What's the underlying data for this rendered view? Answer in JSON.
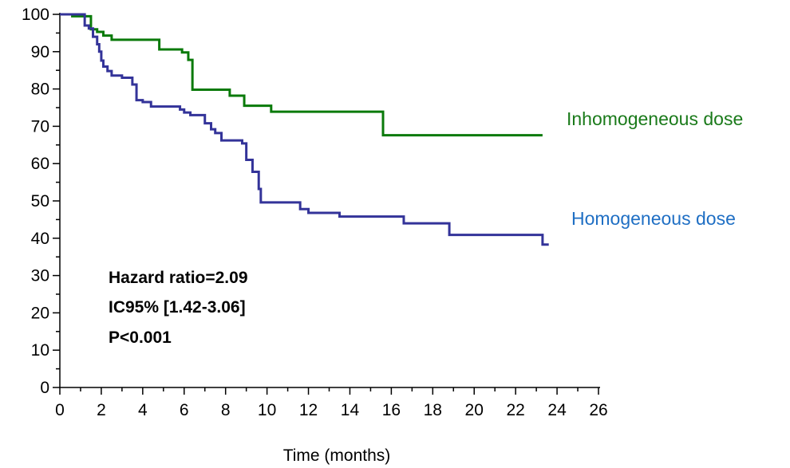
{
  "chart_data": {
    "type": "line",
    "step": true,
    "xlabel": "Time (months)",
    "ylabel": "",
    "xlim": [
      0,
      26
    ],
    "ylim": [
      0,
      100
    ],
    "x_ticks": [
      "0",
      "2",
      "4",
      "6",
      "8",
      "10",
      "12",
      "14",
      "16",
      "18",
      "20",
      "22",
      "24",
      "26"
    ],
    "y_ticks": [
      "0",
      "10",
      "20",
      "30",
      "40",
      "50",
      "60",
      "70",
      "80",
      "90",
      "100"
    ],
    "grid": false,
    "series": [
      {
        "name": "Inhomogeneous dose",
        "color": "#0a7a0a",
        "label_color": "#1a7a1a",
        "x": [
          0,
          0.5,
          0.6,
          1.3,
          1.5,
          1.8,
          2.1,
          2.5,
          4.1,
          4.8,
          5.9,
          6.2,
          6.4,
          8.2,
          8.9,
          10.2,
          15.6,
          23.3
        ],
        "y": [
          100,
          100,
          99.5,
          99.5,
          96,
          95.3,
          94.3,
          93.2,
          93.2,
          90.6,
          89.8,
          87.8,
          79.8,
          78.2,
          75.5,
          73.9,
          67.6,
          67.6
        ]
      },
      {
        "name": "Homogeneous dose",
        "color": "#333399",
        "label_color": "#1f6fc4",
        "x": [
          0,
          1.2,
          1.4,
          1.6,
          1.8,
          1.9,
          2.0,
          2.1,
          2.3,
          2.5,
          3.0,
          3.5,
          3.7,
          4.0,
          4.4,
          5.8,
          6.0,
          6.3,
          7.0,
          7.3,
          7.5,
          7.8,
          8.8,
          9.0,
          9.3,
          9.6,
          9.7,
          11.6,
          12.0,
          13.5,
          16.6,
          18.8,
          23.3,
          23.6
        ],
        "y": [
          100,
          97,
          96.2,
          94,
          92,
          90,
          87.6,
          86,
          84.8,
          83.6,
          83,
          81.2,
          77,
          76.5,
          75.3,
          74.5,
          73.7,
          73,
          70.8,
          69.2,
          68.2,
          66.2,
          65.4,
          61,
          57.8,
          53.2,
          49.6,
          47.8,
          46.8,
          45.8,
          44,
          40.9,
          38.3,
          38.3
        ]
      }
    ],
    "annotations": [
      "Hazard ratio=2.09",
      "IC95% [1.42-3.06]",
      "P<0.001"
    ]
  }
}
